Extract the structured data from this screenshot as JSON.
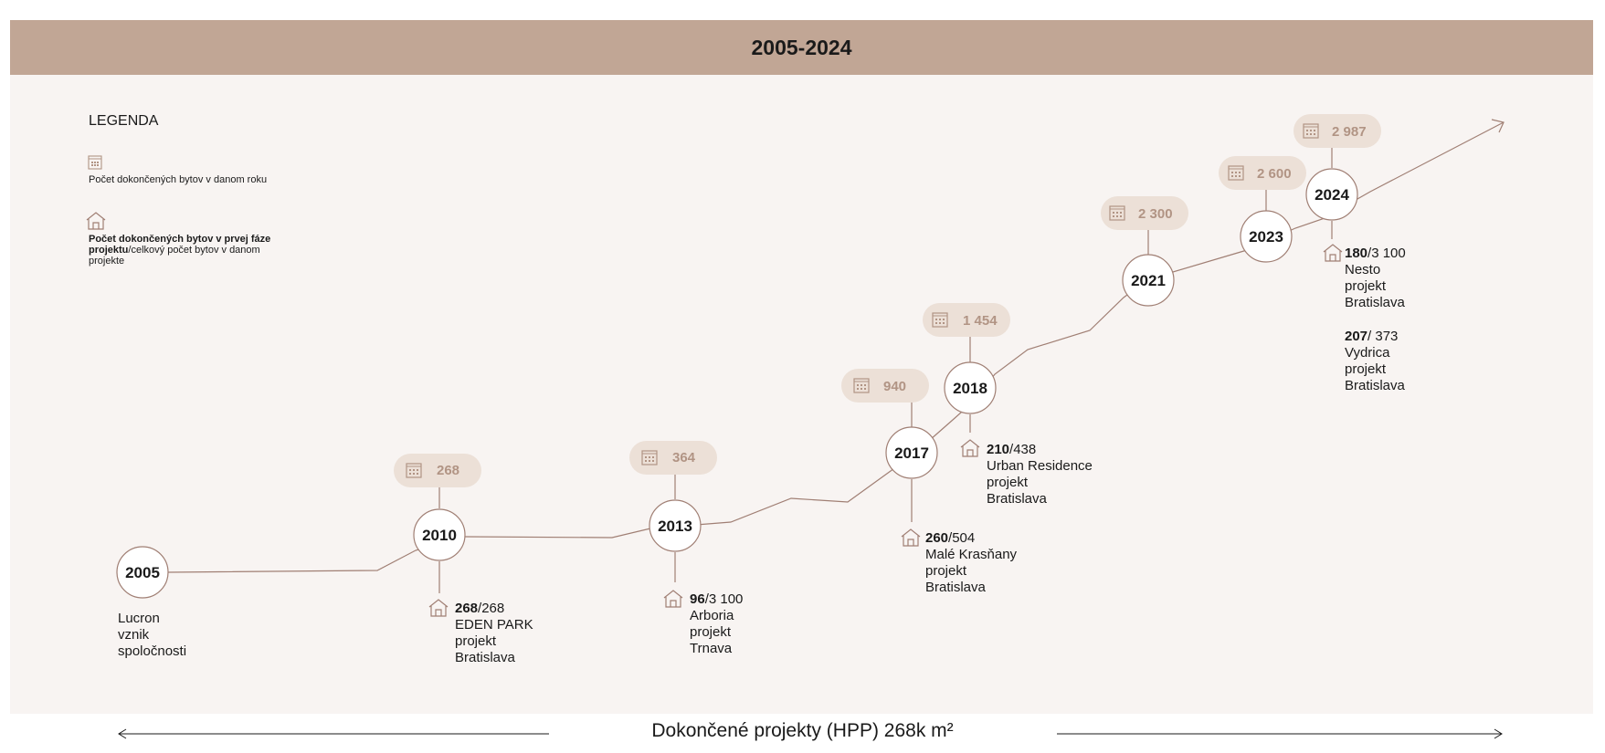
{
  "header": {
    "title": "2005-2024"
  },
  "legend": {
    "title": "LEGENDA",
    "item1_text": "Počet dokončených bytov v danom roku",
    "item2_bold": "Počet dokončených bytov v prvej fáze projektu",
    "item2_rest": "/celkový počet bytov v danom projekte"
  },
  "years": [
    {
      "year": "2005"
    },
    {
      "year": "2010"
    },
    {
      "year": "2013"
    },
    {
      "year": "2017"
    },
    {
      "year": "2018"
    },
    {
      "year": "2021"
    },
    {
      "year": "2023"
    },
    {
      "year": "2024"
    }
  ],
  "counts": {
    "y2010": "268",
    "y2013": "364",
    "y2017": "940",
    "y2018": "1 454",
    "y2021": "2 300",
    "y2023": "2 600",
    "y2024": "2 987"
  },
  "projects": {
    "p2005": {
      "line1": "Lucron",
      "line2": "vznik",
      "line3": "spoločnosti"
    },
    "p2010": {
      "bold": "268",
      "total": "/268",
      "name": "EDEN PARK",
      "type": "projekt",
      "city": "Bratislava"
    },
    "p2013": {
      "bold": "96",
      "total": "/3 100",
      "name": "Arboria",
      "type": "projekt",
      "city": "Trnava"
    },
    "p2017": {
      "bold": "260",
      "total": "/504",
      "name": "Malé Krasňany",
      "type": "projekt",
      "city": "Bratislava"
    },
    "p2018": {
      "bold": "210",
      "total": "/438",
      "name": "Urban Residence",
      "type": "projekt",
      "city": "Bratislava"
    },
    "p2024a": {
      "bold": "180",
      "total": "/3 100",
      "name": "Nesto",
      "type": "projekt",
      "city": "Bratislava"
    },
    "p2024b": {
      "bold": "207",
      "total": "/ 373",
      "name": "Vydrica",
      "type": "projekt",
      "city": "Bratislava"
    }
  },
  "footer": {
    "title": "Dokončené projekty (HPP) 268k m²"
  },
  "colors": {
    "accent": "#c1a695",
    "pill": "#ece0d7",
    "line": "#a07f74",
    "panel": "#f8f4f2"
  }
}
